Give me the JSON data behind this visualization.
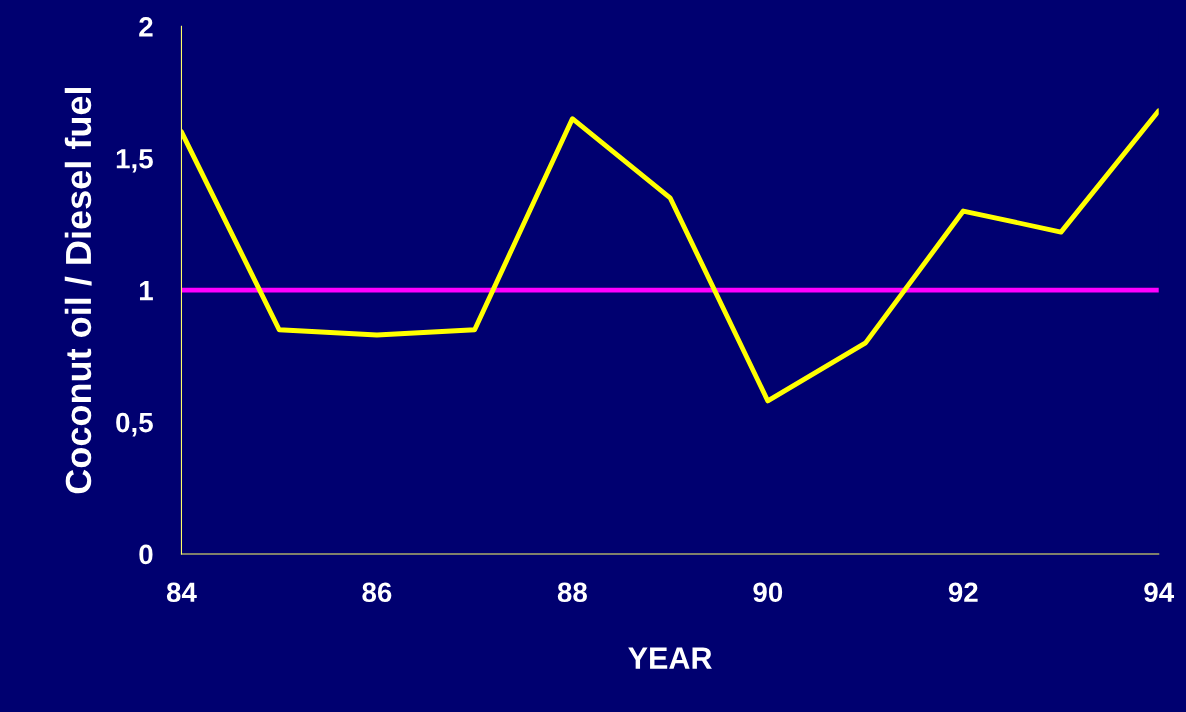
{
  "chart_data": {
    "type": "line",
    "xlabel": "YEAR",
    "ylabel": "Coconut oil / Diesel fuel",
    "x": [
      84,
      85,
      86,
      87,
      88,
      89,
      90,
      91,
      92,
      93,
      94
    ],
    "series": [
      {
        "color": "#ffff00",
        "values": [
          1.6,
          0.85,
          0.83,
          0.85,
          1.65,
          1.35,
          0.58,
          0.8,
          1.3,
          1.22,
          1.68
        ]
      }
    ],
    "xlim": [
      84,
      94
    ],
    "xticks": [
      84,
      86,
      88,
      90,
      92,
      94
    ],
    "ylim": [
      0,
      2
    ],
    "yticks": [
      0,
      {
        "value": 0.5,
        "label": "0,5"
      },
      1,
      {
        "value": 1.5,
        "label": "1,5"
      },
      2
    ],
    "ref_lines": [
      {
        "axis": "y",
        "value": 1,
        "color": "#ff00ff"
      }
    ],
    "grid": false,
    "marker": "none",
    "line_style": "solid"
  }
}
